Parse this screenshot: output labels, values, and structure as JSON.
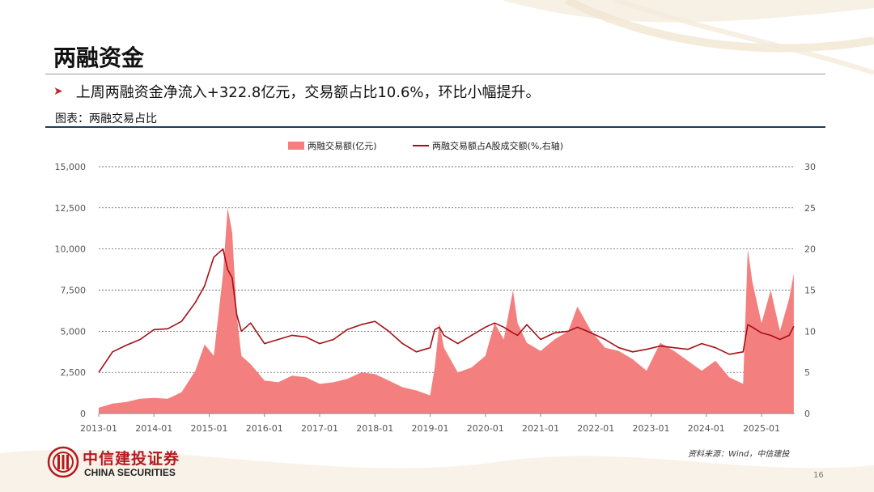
{
  "slide": {
    "title": "两融资金",
    "bullet": "上周两融资金净流入+322.8亿元，交易额占比10.6%，环比小幅提升。",
    "figure_label": "图表：两融交易占比",
    "source": "资料来源：Wind，中信建投",
    "page_number": "16"
  },
  "brand": {
    "name_cn": "中信建投证券",
    "name_en": "CHINA SECURITIES",
    "accent_color": "#b5191f",
    "logo_icon": "citic-logo-icon"
  },
  "colors": {
    "area_fill": "#f47f7f",
    "line": "#a50f15",
    "rule": "#1f3b5e",
    "bullet_arrow": "#c0272d"
  },
  "chart_data": {
    "type": "area",
    "legend": {
      "position": "top-center",
      "items": [
        {
          "label": "两融交易额(亿元)",
          "kind": "area"
        },
        {
          "label": "两融交易额占A股成交额(%,右轴)",
          "kind": "line"
        }
      ]
    },
    "grid": true,
    "x_ticks": [
      "2013-01",
      "2014-01",
      "2015-01",
      "2016-01",
      "2017-01",
      "2018-01",
      "2019-01",
      "2020-01",
      "2021-01",
      "2022-01",
      "2023-01",
      "2024-01",
      "2025-01"
    ],
    "y_left": {
      "min": 0,
      "max": 15000,
      "ticks": [
        "0",
        "2,500",
        "5,000",
        "7,500",
        "10,000",
        "12,500",
        "15,000"
      ]
    },
    "y_right": {
      "min": 0,
      "max": 30,
      "ticks": [
        "0",
        "5",
        "10",
        "15",
        "20",
        "25",
        "30"
      ]
    },
    "series": [
      {
        "name": "两融交易额(亿元)",
        "axis": "left",
        "type": "area",
        "x": [
          "2013-01",
          "2013-04",
          "2013-07",
          "2013-10",
          "2014-01",
          "2014-04",
          "2014-07",
          "2014-10",
          "2014-12",
          "2015-02",
          "2015-04",
          "2015-05",
          "2015-06",
          "2015-07",
          "2015-08",
          "2015-10",
          "2016-01",
          "2016-04",
          "2016-07",
          "2016-10",
          "2017-01",
          "2017-04",
          "2017-07",
          "2017-10",
          "2018-01",
          "2018-04",
          "2018-07",
          "2018-10",
          "2019-01",
          "2019-02",
          "2019-03",
          "2019-04",
          "2019-07",
          "2019-10",
          "2020-01",
          "2020-03",
          "2020-05",
          "2020-07",
          "2020-08",
          "2020-10",
          "2021-01",
          "2021-04",
          "2021-07",
          "2021-09",
          "2021-12",
          "2022-03",
          "2022-06",
          "2022-09",
          "2022-12",
          "2023-03",
          "2023-06",
          "2023-09",
          "2023-12",
          "2024-03",
          "2024-06",
          "2024-09",
          "2024-10",
          "2024-11",
          "2025-01",
          "2025-03",
          "2025-05",
          "2025-07",
          "2025-08"
        ],
        "values": [
          350,
          600,
          700,
          900,
          950,
          900,
          1300,
          2600,
          4200,
          3500,
          8500,
          12500,
          11000,
          6000,
          3500,
          3000,
          2000,
          1900,
          2300,
          2200,
          1800,
          1900,
          2100,
          2500,
          2400,
          2000,
          1600,
          1400,
          1100,
          2800,
          5500,
          4000,
          2500,
          2800,
          3500,
          5500,
          4500,
          7500,
          5500,
          4300,
          3800,
          4500,
          5000,
          6500,
          5000,
          4000,
          3800,
          3300,
          2600,
          4300,
          3800,
          3200,
          2600,
          3200,
          2200,
          1800,
          10000,
          8000,
          5500,
          7500,
          5000,
          7000,
          8500
        ]
      },
      {
        "name": "两融交易额占A股成交额(%,右轴)",
        "axis": "right",
        "type": "line",
        "x": [
          "2013-01",
          "2013-04",
          "2013-07",
          "2013-10",
          "2014-01",
          "2014-04",
          "2014-07",
          "2014-10",
          "2014-12",
          "2015-02",
          "2015-04",
          "2015-05",
          "2015-06",
          "2015-07",
          "2015-08",
          "2015-10",
          "2016-01",
          "2016-04",
          "2016-07",
          "2016-10",
          "2017-01",
          "2017-04",
          "2017-07",
          "2017-10",
          "2018-01",
          "2018-04",
          "2018-07",
          "2018-10",
          "2019-01",
          "2019-02",
          "2019-03",
          "2019-04",
          "2019-07",
          "2019-10",
          "2020-01",
          "2020-03",
          "2020-05",
          "2020-07",
          "2020-08",
          "2020-10",
          "2021-01",
          "2021-04",
          "2021-07",
          "2021-09",
          "2021-12",
          "2022-03",
          "2022-06",
          "2022-09",
          "2022-12",
          "2023-03",
          "2023-06",
          "2023-09",
          "2023-12",
          "2024-03",
          "2024-06",
          "2024-09",
          "2024-10",
          "2024-11",
          "2025-01",
          "2025-03",
          "2025-05",
          "2025-07",
          "2025-08"
        ],
        "values": [
          5.0,
          7.5,
          8.3,
          9.0,
          10.2,
          10.3,
          11.2,
          13.5,
          15.5,
          19.0,
          20.0,
          17.5,
          16.5,
          12.0,
          10.0,
          11.0,
          8.5,
          9.0,
          9.5,
          9.3,
          8.5,
          9.0,
          10.2,
          10.8,
          11.2,
          10.0,
          8.5,
          7.5,
          8.0,
          10.2,
          10.5,
          9.5,
          8.5,
          9.5,
          10.5,
          11.0,
          10.5,
          9.8,
          9.5,
          10.8,
          9.0,
          9.8,
          10.0,
          10.5,
          9.8,
          9.0,
          8.0,
          7.5,
          7.8,
          8.2,
          8.0,
          7.8,
          8.5,
          8.0,
          7.2,
          7.5,
          10.8,
          10.5,
          9.8,
          9.5,
          9.0,
          9.5,
          10.6
        ]
      }
    ]
  }
}
